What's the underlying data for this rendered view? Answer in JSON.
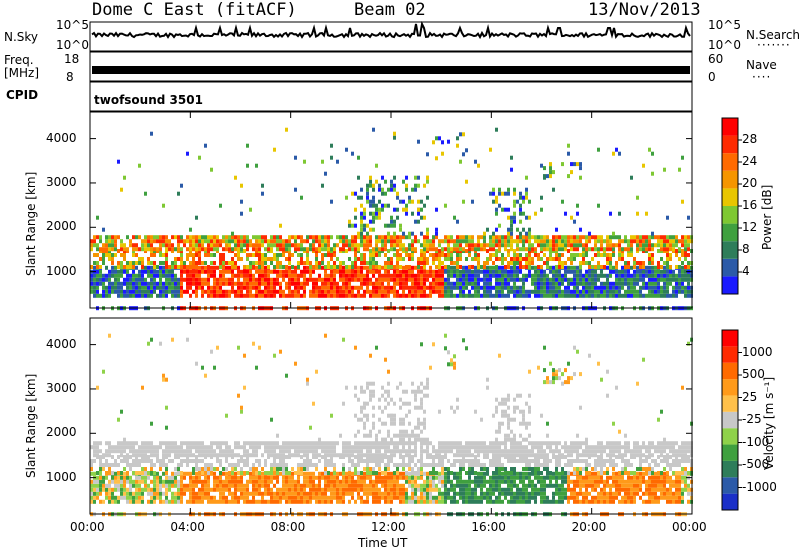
{
  "header": {
    "station": "Dome C East (fitACF)",
    "beam": "Beam 02",
    "date": "13/Nov/2013"
  },
  "top_panels": {
    "nsky_label": "N.Sky",
    "nsky_ticks": [
      "10^5",
      "10^0"
    ],
    "nsearch_label": "N.Search",
    "nsearch_ticks": [
      "10^5",
      "10^0"
    ],
    "freq_label": "Freq.",
    "freq_unit": "[MHz]",
    "freq_ticks": [
      "18",
      "8"
    ],
    "nave_label": "Nave",
    "nave_ticks": [
      "60",
      "0"
    ],
    "cpid_label": "CPID",
    "cpid_value": "twofsound 3501"
  },
  "chart_data": [
    {
      "type": "heatmap",
      "name": "power",
      "ylabel": "Slant Range [km]",
      "xlabel": "Time UT",
      "x_ticks": [
        "00:00",
        "04:00",
        "08:00",
        "12:00",
        "16:00",
        "20:00",
        "00:00"
      ],
      "y_ticks": [
        1000,
        2000,
        3000,
        4000
      ],
      "ylim": [
        180,
        4600
      ],
      "colorbar_label": "Power [dB]",
      "colorbar_ticks": [
        4,
        8,
        12,
        16,
        20,
        24,
        28
      ],
      "colorbar_colors": [
        "#1a1aff",
        "#2b5aa8",
        "#2e7d5a",
        "#3fa03f",
        "#7ec832",
        "#e8c600",
        "#f59500",
        "#ff6a00",
        "#ff2a00",
        "#ff0000"
      ]
    },
    {
      "type": "heatmap",
      "name": "velocity",
      "ylabel": "Slant Range [km]",
      "xlabel": "Time UT",
      "x_ticks": [
        "00:00",
        "04:00",
        "08:00",
        "12:00",
        "16:00",
        "20:00",
        "00:00"
      ],
      "y_ticks": [
        1000,
        2000,
        3000,
        4000
      ],
      "ylim": [
        180,
        4600
      ],
      "colorbar_label": "Velocity [m s⁻¹]",
      "colorbar_ticks": [
        "1000",
        "500",
        "25",
        "-25",
        "-100",
        "-500",
        "-1000"
      ],
      "colorbar_colors": [
        "#1a2fc8",
        "#2b5aa8",
        "#2e7d5a",
        "#3fa03f",
        "#8fd24a",
        "#c8c8c8",
        "#ffc04a",
        "#ff9a1a",
        "#ff6a00",
        "#ff2a00",
        "#ff0000"
      ]
    }
  ],
  "colors": {
    "ground_scatter": "#b8b8b8"
  }
}
